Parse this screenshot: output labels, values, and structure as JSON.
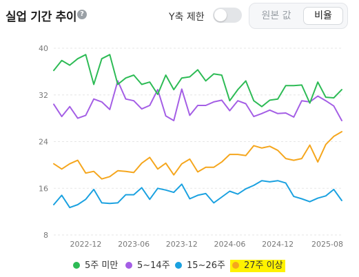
{
  "header": {
    "title": "실업 기간 추이",
    "help_icon": "question-circle-icon",
    "ylimit_label": "Y축 제한",
    "ylimit_on": false,
    "raw_button": "원본 값",
    "ratio_button": "비율",
    "selected": "비율"
  },
  "chart_data": {
    "type": "line",
    "ylim": [
      8,
      40
    ],
    "yticks": [
      8,
      16,
      24,
      32,
      40
    ],
    "xlim": [
      "2022-08",
      "2025-08"
    ],
    "xticks": [
      "2022-12",
      "2023-06",
      "2023-12",
      "2024-06",
      "2024-12",
      "2025-08"
    ],
    "grid": true,
    "legend_position": "bottom",
    "x": [
      "2022-08",
      "2022-09",
      "2022-10",
      "2022-11",
      "2022-12",
      "2023-01",
      "2023-02",
      "2023-03",
      "2023-04",
      "2023-05",
      "2023-06",
      "2023-07",
      "2023-08",
      "2023-09",
      "2023-10",
      "2023-11",
      "2023-12",
      "2024-01",
      "2024-02",
      "2024-03",
      "2024-04",
      "2024-05",
      "2024-06",
      "2024-07",
      "2024-08",
      "2024-09",
      "2024-10",
      "2024-11",
      "2024-12",
      "2025-01",
      "2025-02",
      "2025-03",
      "2025-04",
      "2025-05",
      "2025-06",
      "2025-07",
      "2025-08"
    ],
    "series": [
      {
        "name": "5주 미만",
        "color": "#2dbb55",
        "values": [
          36.2,
          37.9,
          37.1,
          38.2,
          38.9,
          33.8,
          38.2,
          38.9,
          33.8,
          34.9,
          35.4,
          33.8,
          34.2,
          32.1,
          35.4,
          32.9,
          34.9,
          35.1,
          36.3,
          34.4,
          35.6,
          35.4,
          31.0,
          32.9,
          34.4,
          31.0,
          30.0,
          31.1,
          31.3,
          33.6,
          33.6,
          33.7,
          30.6,
          34.2,
          31.6,
          31.5,
          32.9
        ]
      },
      {
        "name": "5~14주",
        "color": "#a45ee5",
        "values": [
          30.4,
          28.3,
          30.0,
          28.0,
          28.5,
          31.3,
          30.8,
          29.5,
          34.4,
          31.3,
          31.0,
          29.6,
          30.2,
          32.9,
          28.4,
          27.6,
          33.0,
          28.5,
          30.2,
          30.2,
          30.8,
          31.1,
          29.3,
          31.0,
          30.5,
          28.3,
          28.8,
          29.4,
          28.8,
          28.9,
          28.2,
          31.0,
          30.8,
          31.8,
          31.0,
          30.1,
          27.6
        ]
      },
      {
        "name": "15~26주",
        "color": "#1aa1e0",
        "values": [
          13.2,
          14.8,
          12.7,
          13.2,
          14.1,
          15.8,
          13.5,
          13.4,
          13.5,
          14.9,
          14.9,
          16.1,
          14.1,
          16.0,
          15.7,
          15.3,
          16.7,
          14.2,
          14.8,
          15.1,
          13.5,
          14.5,
          15.5,
          15.0,
          15.9,
          16.5,
          17.3,
          17.1,
          17.3,
          16.9,
          14.6,
          14.2,
          13.7,
          14.3,
          14.7,
          15.8,
          13.9
        ]
      },
      {
        "name": "27주 이상",
        "color": "#f5a61d",
        "values": [
          20.2,
          19.3,
          20.2,
          20.8,
          18.6,
          18.9,
          17.6,
          18.0,
          19.0,
          18.9,
          18.7,
          20.3,
          21.3,
          19.3,
          20.3,
          18.3,
          20.2,
          21.0,
          18.8,
          19.6,
          19.6,
          20.5,
          21.8,
          21.8,
          21.6,
          23.3,
          22.9,
          23.2,
          22.5,
          21.1,
          20.8,
          21.1,
          23.4,
          20.5,
          23.5,
          24.9,
          25.7
        ]
      }
    ]
  }
}
